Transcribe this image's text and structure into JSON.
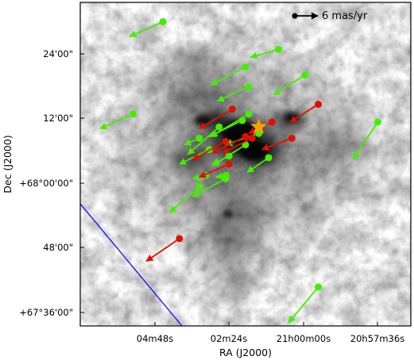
{
  "chart_data": {
    "type": "scatter",
    "xlabel": "RA (J2000)",
    "ylabel": "Dec (J2000)",
    "x_ticks": [
      "04m48s",
      "02m24s",
      "21h00m00s",
      "20h57m36s"
    ],
    "y_ticks": [
      "24'00\"",
      "12'00\"",
      "+68°00'00\"",
      "48'00\"",
      "+67°36'00\""
    ],
    "scale_bar": {
      "label": "6 mas/yr",
      "length_mas_per_yr": 6
    },
    "colors": {
      "green": "#44ee00",
      "red": "#e01000",
      "star": "#ffa000",
      "boundary": "#0000ff",
      "frame": "#000000"
    },
    "star": {
      "x": 0.54,
      "y": 0.385,
      "label": ""
    },
    "green_vectors": [
      {
        "x": 0.25,
        "y": 0.06,
        "dx": -0.1,
        "dy": 0.045
      },
      {
        "x": 0.6,
        "y": 0.145,
        "dx": -0.085,
        "dy": 0.025
      },
      {
        "x": 0.5,
        "y": 0.2,
        "dx": -0.105,
        "dy": 0.055
      },
      {
        "x": 0.68,
        "y": 0.225,
        "dx": -0.095,
        "dy": 0.06
      },
      {
        "x": 0.51,
        "y": 0.26,
        "dx": -0.095,
        "dy": 0.045
      },
      {
        "x": 0.16,
        "y": 0.345,
        "dx": -0.1,
        "dy": 0.045
      },
      {
        "x": 0.9,
        "y": 0.37,
        "dx": -0.075,
        "dy": 0.115
      },
      {
        "x": 0.51,
        "y": 0.345,
        "dx": -0.115,
        "dy": 0.07
      },
      {
        "x": 0.49,
        "y": 0.365,
        "dx": -0.1,
        "dy": 0.05
      },
      {
        "x": 0.42,
        "y": 0.385,
        "dx": -0.095,
        "dy": 0.085
      },
      {
        "x": 0.36,
        "y": 0.42,
        "dx": -0.045,
        "dy": 0.02
      },
      {
        "x": 0.54,
        "y": 0.405,
        "dx": -0.1,
        "dy": 0.035
      },
      {
        "x": 0.5,
        "y": 0.44,
        "dx": -0.1,
        "dy": 0.065
      },
      {
        "x": 0.39,
        "y": 0.455,
        "dx": -0.09,
        "dy": 0.045
      },
      {
        "x": 0.57,
        "y": 0.48,
        "dx": -0.065,
        "dy": 0.045
      },
      {
        "x": 0.45,
        "y": 0.475,
        "dx": -0.05,
        "dy": 0.025
      },
      {
        "x": 0.38,
        "y": 0.535,
        "dx": -0.04,
        "dy": 0.01
      },
      {
        "x": 0.44,
        "y": 0.535,
        "dx": -0.03,
        "dy": 0.005
      },
      {
        "x": 0.36,
        "y": 0.57,
        "dx": -0.09,
        "dy": 0.08
      },
      {
        "x": 0.44,
        "y": 0.545,
        "dx": -0.1,
        "dy": 0.055
      },
      {
        "x": 0.72,
        "y": 0.88,
        "dx": -0.09,
        "dy": 0.11
      }
    ],
    "red_vectors": [
      {
        "x": 0.46,
        "y": 0.33,
        "dx": -0.1,
        "dy": 0.06
      },
      {
        "x": 0.72,
        "y": 0.315,
        "dx": -0.085,
        "dy": 0.055
      },
      {
        "x": 0.58,
        "y": 0.37,
        "dx": -0.07,
        "dy": 0.035
      },
      {
        "x": 0.52,
        "y": 0.42,
        "dx": -0.09,
        "dy": 0.045
      },
      {
        "x": 0.5,
        "y": 0.415,
        "dx": -0.1,
        "dy": 0.05
      },
      {
        "x": 0.44,
        "y": 0.43,
        "dx": -0.1,
        "dy": 0.055
      },
      {
        "x": 0.64,
        "y": 0.42,
        "dx": -0.09,
        "dy": 0.035
      },
      {
        "x": 0.45,
        "y": 0.5,
        "dx": -0.09,
        "dy": 0.04
      },
      {
        "x": 0.3,
        "y": 0.73,
        "dx": -0.1,
        "dy": 0.07
      }
    ]
  }
}
